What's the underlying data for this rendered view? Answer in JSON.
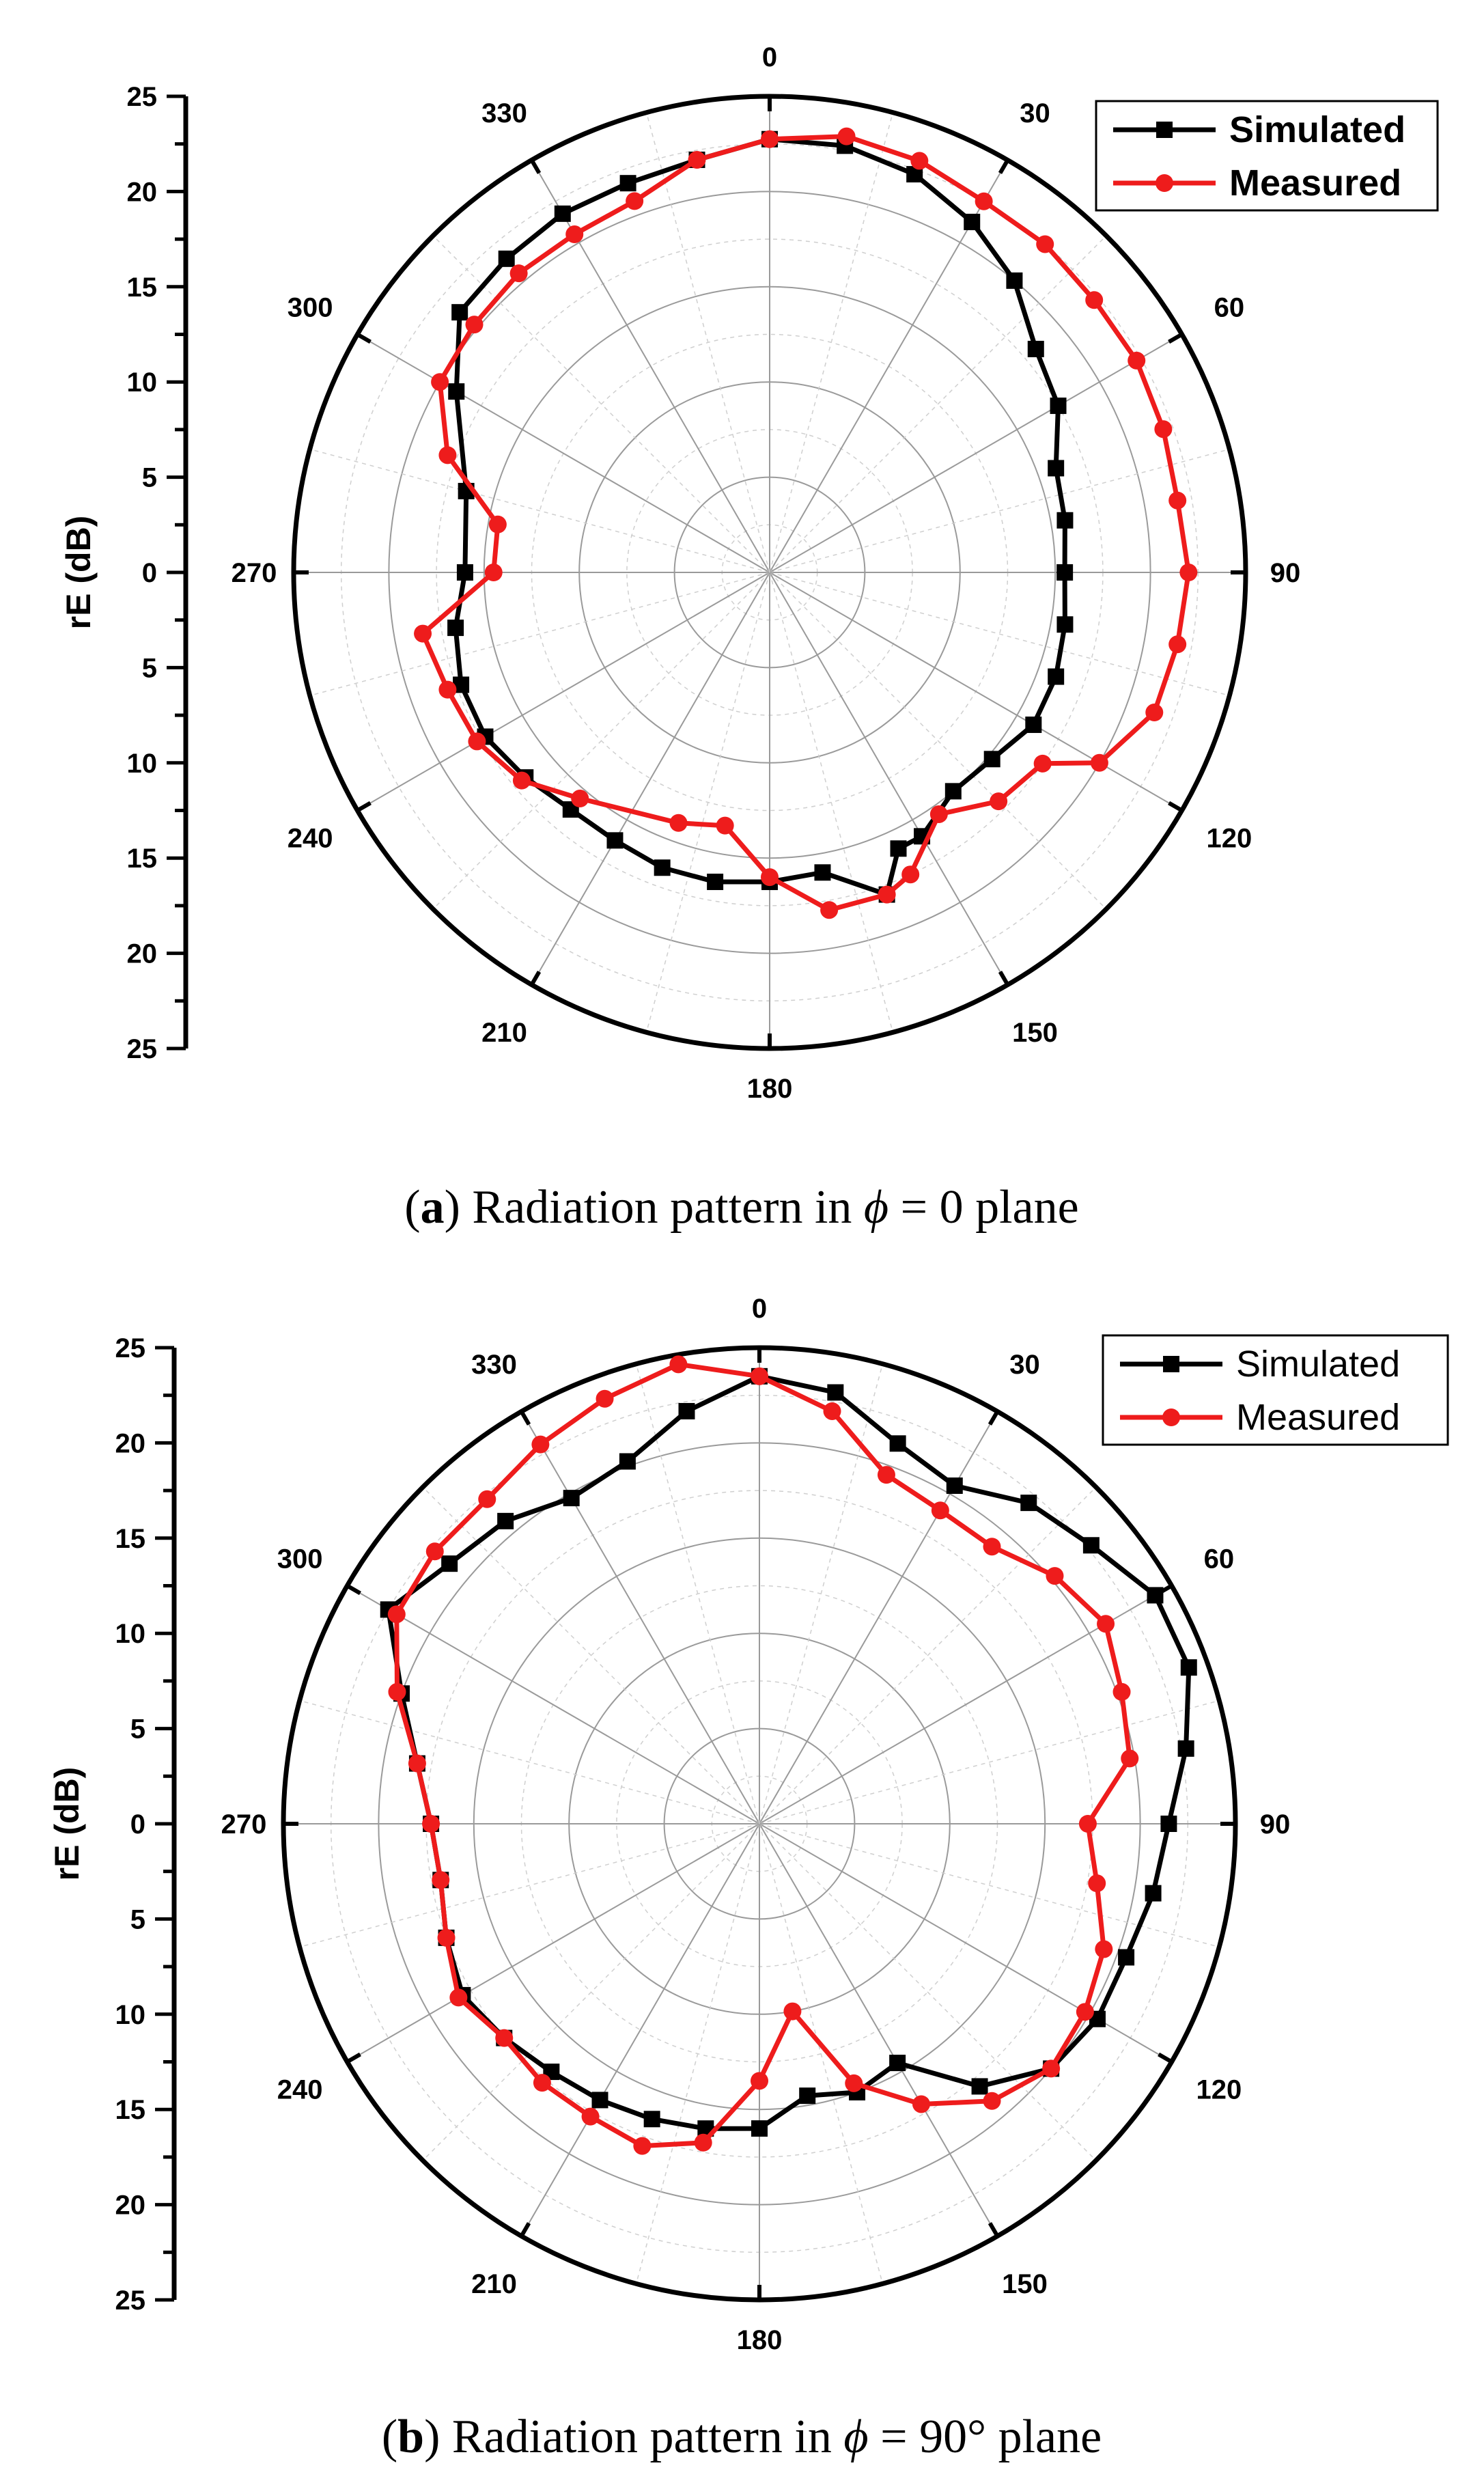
{
  "figure": {
    "colors": {
      "simulated": "#000000",
      "measured": "#ee1c1c",
      "major_grid": "#9a9a9a",
      "minor_grid": "#cfcfcf"
    },
    "charts": [
      {
        "id": "a",
        "caption": {
          "label": "a",
          "open": "(",
          "close": ") Radiation pattern in ",
          "phi": "ϕ",
          "eq": " = 0 plane"
        }
      },
      {
        "id": "b",
        "caption": {
          "label": "b",
          "open": "(",
          "close": ") Radiation pattern in ",
          "phi": "ϕ",
          "eq": " = 90° plane"
        }
      }
    ]
  },
  "chart_data": [
    {
      "type": "polar",
      "title": "",
      "ylabel": "rE (dB)",
      "r_ticks": [
        "25",
        "20",
        "15",
        "10",
        "5",
        "0",
        "5",
        "10",
        "15",
        "20",
        "25"
      ],
      "angle_labels": [
        "0",
        "30",
        "60",
        "90",
        "120",
        "150",
        "180",
        "210",
        "240",
        "270",
        "300",
        "330"
      ],
      "r_range": [
        -25,
        25
      ],
      "legend_position": "top-right",
      "legend_bold": true,
      "series": [
        {
          "name": "Simulated",
          "marker": "square",
          "points": [
            [
              0,
              20.5
            ],
            [
              10,
              20.5
            ],
            [
              20,
              19.5
            ],
            [
              30,
              17.5
            ],
            [
              40,
              15
            ],
            [
              50,
              11.5
            ],
            [
              60,
              10
            ],
            [
              70,
              7
            ],
            [
              80,
              6.5
            ],
            [
              90,
              6
            ],
            [
              100,
              6.5
            ],
            [
              110,
              7
            ],
            [
              120,
              7
            ],
            [
              130,
              5.5
            ],
            [
              140,
              5
            ],
            [
              150,
              7
            ],
            [
              155,
              7
            ],
            [
              160,
              11
            ],
            [
              170,
              7
            ],
            [
              180,
              7.5
            ],
            [
              190,
              8
            ],
            [
              200,
              8
            ],
            [
              210,
              7.5
            ],
            [
              220,
              7.5
            ],
            [
              230,
              8.5
            ],
            [
              240,
              9.5
            ],
            [
              250,
              9.5
            ],
            [
              260,
              8.5
            ],
            [
              270,
              7
            ],
            [
              285,
              8
            ],
            [
              300,
              13
            ],
            [
              310,
              17.5
            ],
            [
              320,
              18
            ],
            [
              330,
              18.5
            ],
            [
              340,
              18.5
            ],
            [
              350,
              19
            ]
          ]
        },
        {
          "name": "Measured",
          "marker": "circle",
          "points": [
            [
              0,
              20.5
            ],
            [
              10,
              21.5
            ],
            [
              20,
              21
            ],
            [
              30,
              20
            ],
            [
              40,
              20
            ],
            [
              50,
              19.5
            ],
            [
              60,
              19.5
            ],
            [
              70,
              19
            ],
            [
              80,
              18.5
            ],
            [
              90,
              19
            ],
            [
              100,
              18.5
            ],
            [
              110,
              18
            ],
            [
              120,
              15
            ],
            [
              125,
              10
            ],
            [
              135,
              9
            ],
            [
              145,
              6
            ],
            [
              155,
              10
            ],
            [
              160,
              11
            ],
            [
              170,
              11
            ],
            [
              180,
              7
            ],
            [
              190,
              2
            ],
            [
              200,
              3
            ],
            [
              220,
              6
            ],
            [
              230,
              9
            ],
            [
              240,
              10.5
            ],
            [
              250,
              11
            ],
            [
              260,
              12
            ],
            [
              270,
              4
            ],
            [
              280,
              4
            ],
            [
              290,
              11
            ],
            [
              300,
              15
            ],
            [
              310,
              15.5
            ],
            [
              320,
              16
            ],
            [
              330,
              16
            ],
            [
              340,
              16.5
            ],
            [
              350,
              19
            ]
          ]
        }
      ]
    },
    {
      "type": "polar",
      "title": "",
      "ylabel": "rE (dB)",
      "r_ticks": [
        "25",
        "20",
        "15",
        "10",
        "5",
        "0",
        "5",
        "10",
        "15",
        "20",
        "25"
      ],
      "angle_labels": [
        "0",
        "30",
        "60",
        "90",
        "120",
        "150",
        "180",
        "210",
        "240",
        "270",
        "300",
        "330"
      ],
      "r_range": [
        -25,
        25
      ],
      "legend_position": "top-right",
      "legend_bold": false,
      "series": [
        {
          "name": "Simulated",
          "marker": "square",
          "points": [
            [
              0,
              22
            ],
            [
              10,
              21
            ],
            [
              20,
              17.5
            ],
            [
              30,
              16
            ],
            [
              40,
              19
            ],
            [
              50,
              20.5
            ],
            [
              60,
              23
            ],
            [
              70,
              23
            ],
            [
              80,
              20.5
            ],
            [
              90,
              18
            ],
            [
              100,
              17
            ],
            [
              110,
              16
            ],
            [
              120,
              16
            ],
            [
              130,
              15
            ],
            [
              140,
              11
            ],
            [
              150,
              4
            ],
            [
              160,
              5
            ],
            [
              170,
              4
            ],
            [
              180,
              7
            ],
            [
              190,
              7.5
            ],
            [
              200,
              8
            ],
            [
              210,
              8.5
            ],
            [
              220,
              9
            ],
            [
              230,
              10
            ],
            [
              240,
              11
            ],
            [
              250,
              10
            ],
            [
              260,
              9
            ],
            [
              270,
              9.5
            ],
            [
              280,
              11.5
            ],
            [
              290,
              15
            ],
            [
              300,
              20
            ],
            [
              310,
              17.5
            ],
            [
              320,
              16.5
            ],
            [
              330,
              14.5
            ],
            [
              340,
              15.5
            ],
            [
              350,
              19
            ]
          ]
        },
        {
          "name": "Measured",
          "marker": "circle",
          "points": [
            [
              0,
              22
            ],
            [
              10,
              19
            ],
            [
              20,
              14
            ],
            [
              30,
              13
            ],
            [
              40,
              13
            ],
            [
              50,
              15.5
            ],
            [
              60,
              17
            ],
            [
              70,
              15.5
            ],
            [
              80,
              14.5
            ],
            [
              90,
              9.5
            ],
            [
              100,
              11
            ],
            [
              110,
              13.5
            ],
            [
              120,
              14.5
            ],
            [
              130,
              15
            ],
            [
              140,
              13
            ],
            [
              150,
              9
            ],
            [
              160,
              4
            ],
            [
              170,
              -5
            ],
            [
              180,
              2
            ],
            [
              190,
              9
            ],
            [
              200,
              11
            ],
            [
              210,
              10.5
            ],
            [
              220,
              10.5
            ],
            [
              230,
              10
            ],
            [
              240,
              11.5
            ],
            [
              250,
              10
            ],
            [
              260,
              9
            ],
            [
              270,
              9.5
            ],
            [
              280,
              11.5
            ],
            [
              290,
              15.5
            ],
            [
              300,
              19
            ],
            [
              310,
              19.5
            ],
            [
              320,
              19.5
            ],
            [
              330,
              21
            ],
            [
              340,
              22.5
            ],
            [
              350,
              24
            ]
          ]
        }
      ]
    }
  ]
}
